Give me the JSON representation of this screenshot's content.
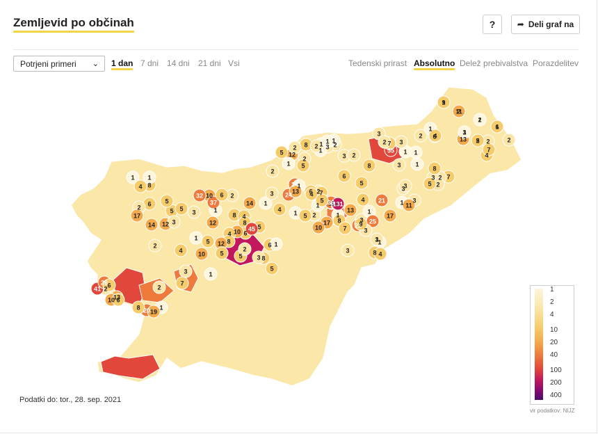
{
  "header": {
    "title": "Zemljevid po občinah",
    "help_label": "?",
    "share_label": "Deli graf na"
  },
  "controls": {
    "metric_select": "Potrjeni primeri",
    "periods": [
      "1 dan",
      "7 dni",
      "14 dni",
      "21 dni",
      "Vsi"
    ],
    "active_period": "1 dan",
    "modes": [
      "Tedenski prirast",
      "Absolutno",
      "Delež prebivalstva",
      "Porazdelitev"
    ],
    "active_mode": "Absolutno"
  },
  "footer": {
    "data_date": "Podatki do: tor., 28. sep. 2021",
    "source": "vir podatkov: NIJZ"
  },
  "legend": {
    "ticks": [
      "1",
      "2",
      "4",
      "10",
      "20",
      "40",
      "100",
      "200",
      "400"
    ],
    "colors": [
      "#fdf6dc",
      "#fbe6a8",
      "#f6cc6a",
      "#f4a94a",
      "#ee7a3c",
      "#e2473b",
      "#c2185b",
      "#8a0a6f",
      "#4a0a6e"
    ]
  },
  "map": {
    "municipality_values": [
      "1",
      "2",
      "2",
      "1",
      "3",
      "2",
      "2",
      "13",
      "2",
      "4",
      "7",
      "2",
      "6",
      "1",
      "55",
      "3",
      "1",
      "1",
      "1",
      "4",
      "3",
      "7",
      "3",
      "2",
      "2",
      "3",
      "1",
      "1",
      "1",
      "3",
      "2",
      "12",
      "8",
      "1",
      "2",
      "2",
      "1",
      "2",
      "5",
      "2",
      "5",
      "8",
      "6",
      "5",
      "7",
      "2",
      "3",
      "2",
      "5",
      "8",
      "3",
      "3",
      "1",
      "3",
      "11",
      "24",
      "24",
      "2",
      "1",
      "7",
      "13",
      "6",
      "19",
      "4",
      "2",
      "1",
      "17",
      "36",
      "4",
      "1",
      "10",
      "13",
      "3",
      "1",
      "8",
      "7",
      "22",
      "1",
      "3",
      "4",
      "1",
      "5",
      "4",
      "21",
      "17",
      "25",
      "3",
      "1",
      "9",
      "8",
      "4",
      "3",
      "14",
      "1",
      "5",
      "131",
      "3",
      "1",
      "8",
      "4",
      "8",
      "5",
      "6",
      "45",
      "10",
      "4",
      "8",
      "12",
      "5",
      "5",
      "8",
      "5",
      "6",
      "2",
      "1",
      "3",
      "10",
      "32",
      "37",
      "2",
      "6",
      "3",
      "5",
      "5",
      "6",
      "8",
      "1",
      "1",
      "4",
      "2",
      "17",
      "12",
      "14",
      "3",
      "5",
      "12",
      "5",
      "1",
      "10",
      "1",
      "3",
      "4",
      "2",
      "7",
      "2",
      "1",
      "20",
      "19",
      "8",
      "13",
      "10",
      "6",
      "2",
      "41",
      "26",
      "6",
      "9",
      "11",
      "1",
      "6",
      "1",
      "5"
    ]
  }
}
